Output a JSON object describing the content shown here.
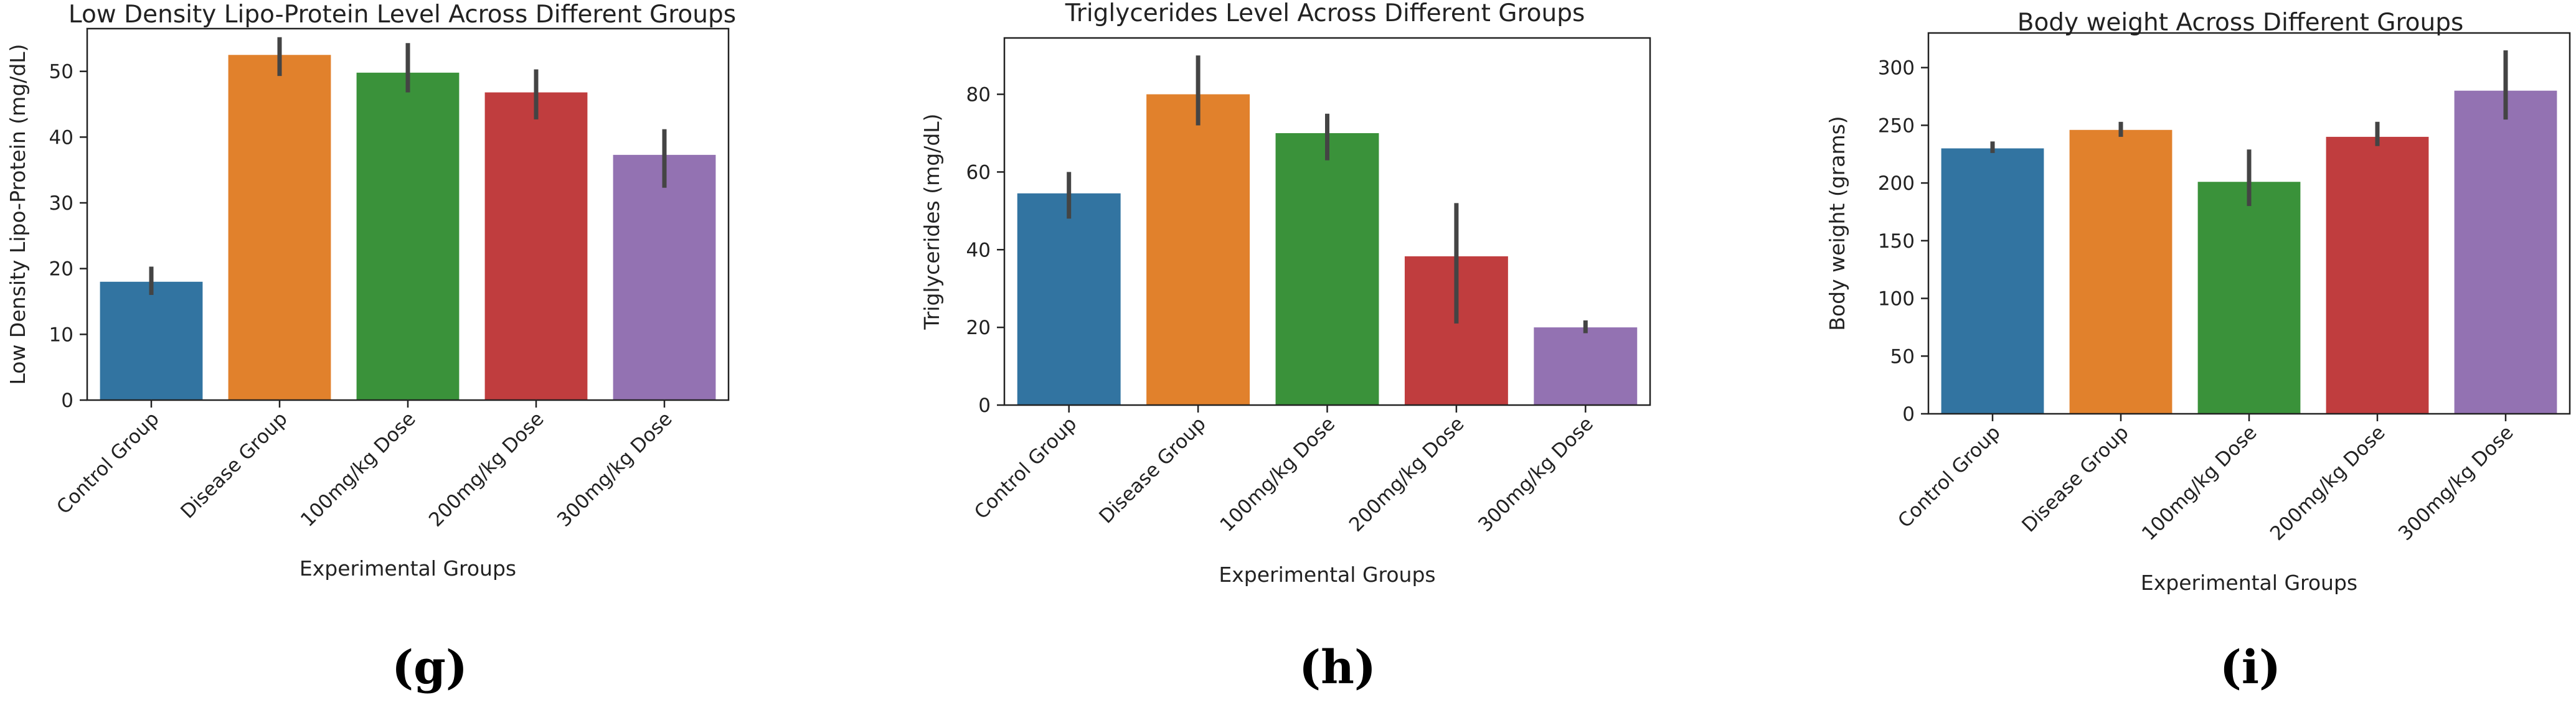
{
  "chart_data": [
    {
      "type": "bar",
      "panel_label": "(g)",
      "title": "Low Density Lipo-Protein Level Across Different Groups",
      "xlabel": "Experimental Groups",
      "ylabel": "Low Density Lipo-Protein (mg/dL)",
      "categories": [
        "Control Group",
        "Disease Group",
        "100mg/kg Dose",
        "200mg/kg Dose",
        "300mg/kg Dose"
      ],
      "values": [
        18,
        52.5,
        49.8,
        46.8,
        37.3
      ],
      "error_low": [
        16,
        49.3,
        46.8,
        42.7,
        32.3
      ],
      "error_high": [
        20.3,
        55.2,
        54.3,
        50.3,
        41.2
      ],
      "colors": [
        "#3274a1",
        "#e1812c",
        "#3a923a",
        "#c03d3e",
        "#9372b2"
      ],
      "ylim": [
        0,
        56.5
      ],
      "yticks": [
        0,
        10,
        20,
        30,
        40,
        50
      ],
      "grid": false
    },
    {
      "type": "bar",
      "panel_label": "(h)",
      "title": "Triglycerides Level Across Different Groups",
      "xlabel": "Experimental Groups",
      "ylabel": "Triglycerides (mg/dL)",
      "categories": [
        "Control Group",
        "Disease Group",
        "100mg/kg Dose",
        "200mg/kg Dose",
        "300mg/kg Dose"
      ],
      "values": [
        54.5,
        80,
        70,
        38.3,
        20
      ],
      "error_low": [
        48,
        72,
        63,
        21,
        18.5
      ],
      "error_high": [
        60,
        90,
        75,
        52,
        21.8
      ],
      "colors": [
        "#3274a1",
        "#e1812c",
        "#3a923a",
        "#c03d3e",
        "#9372b2"
      ],
      "ylim": [
        0,
        94.5
      ],
      "yticks": [
        0,
        20,
        40,
        60,
        80
      ],
      "grid": false
    },
    {
      "type": "bar",
      "panel_label": "(i)",
      "title": "Body weight Across Different Groups",
      "xlabel": "Experimental Groups",
      "ylabel": "Body weight (grams)",
      "categories": [
        "Control Group",
        "Disease Group",
        "100mg/kg Dose",
        "200mg/kg Dose",
        "300mg/kg Dose"
      ],
      "values": [
        230,
        246,
        201,
        240,
        280
      ],
      "error_low": [
        226,
        240,
        180,
        232,
        255
      ],
      "error_high": [
        236,
        253,
        229,
        253,
        315
      ],
      "colors": [
        "#3274a1",
        "#e1812c",
        "#3a923a",
        "#c03d3e",
        "#9372b2"
      ],
      "ylim": [
        0,
        330
      ],
      "yticks": [
        0,
        50,
        100,
        150,
        200,
        250,
        300
      ],
      "grid": false
    }
  ]
}
